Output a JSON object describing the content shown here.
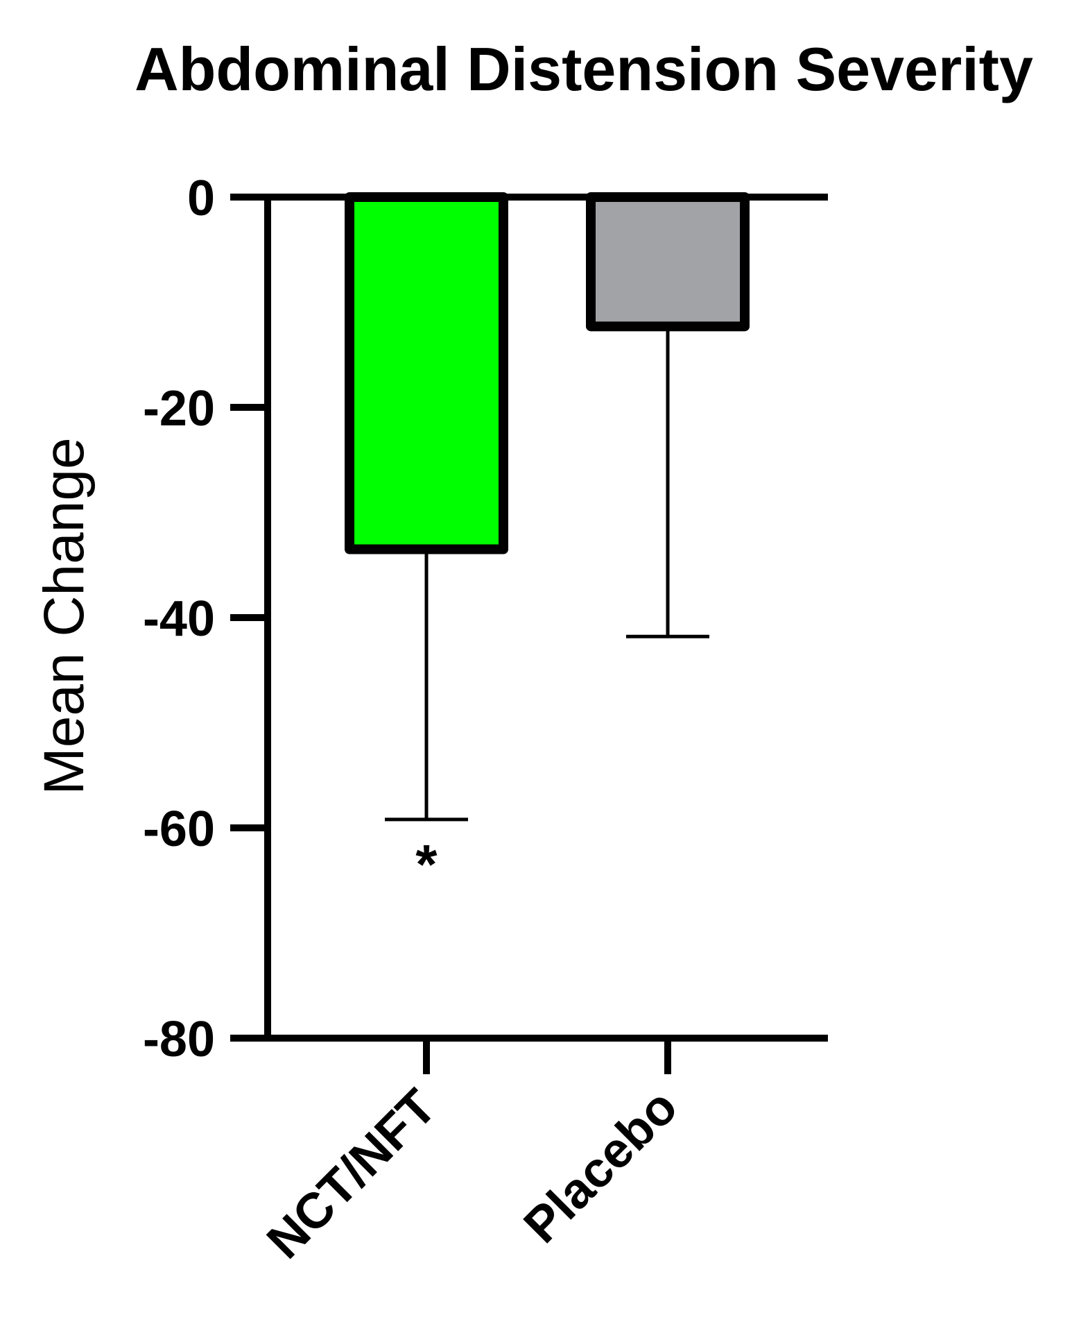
{
  "chart_data": {
    "type": "bar",
    "title": "Abdominal Distension Severity",
    "xlabel": "",
    "ylabel": "Mean Change",
    "ylim": [
      -80,
      0
    ],
    "yticks": [
      0,
      -20,
      -40,
      -60,
      -80
    ],
    "ytick_labels": [
      "0",
      "-20",
      "-40",
      "-60",
      "-80"
    ],
    "categories": [
      "NCT/NFT",
      "Placebo"
    ],
    "values": [
      -33.5,
      -12.3
    ],
    "error_lower": [
      -59.2,
      -41.8
    ],
    "bar_colors": [
      "#00ff00",
      "#a2a3a7"
    ],
    "annotations": [
      {
        "category": "NCT/NFT",
        "text": "*"
      }
    ],
    "grid": false
  }
}
